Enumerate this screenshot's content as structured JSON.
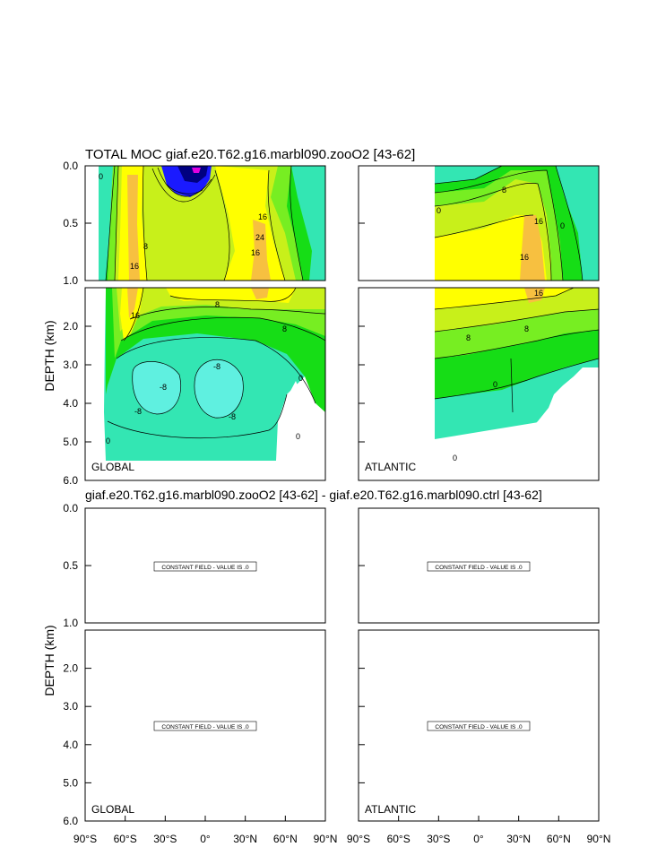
{
  "titles": {
    "top": "TOTAL MOC giaf.e20.T62.g16.marbl090.zooO2 [43-62]",
    "bottom": "giaf.e20.T62.g16.marbl090.zooO2 [43-62] - giaf.e20.T62.g16.marbl090.ctrl [43-62]"
  },
  "axes": {
    "ylabel": "DEPTH (km)",
    "upper_ticks": [
      "0.0",
      "0.5",
      "1.0"
    ],
    "lower_ticks": [
      "2.0",
      "3.0",
      "4.0",
      "5.0",
      "6.0"
    ],
    "x_ticks_left": [
      "90°S",
      "60°S",
      "30°S",
      "0°",
      "30°N",
      "60°N",
      "90°N"
    ],
    "x_ticks_right": [
      "90°S",
      "60°S",
      "30°S",
      "0°",
      "30°N",
      "60°N",
      "90°N"
    ]
  },
  "panel_labels": {
    "global": "GLOBAL",
    "atlantic": "ATLANTIC"
  },
  "constant_field_text": "CONSTANT FIELD - VALUE IS .0",
  "colors": {
    "cyan": "#33e6b3",
    "green": "#16dd16",
    "lightgreen": "#77ee22",
    "yellowgreen": "#c8f01a",
    "yellow": "#ffff00",
    "orange": "#f7c040",
    "blue": "#1a1aff",
    "darkblue": "#000080",
    "magenta": "#e000e0"
  },
  "chart_data": [
    {
      "type": "heatmap",
      "title": "TOTAL MOC giaf.e20.T62.g16.marbl090.zooO2 [43-62]",
      "panel": "GLOBAL",
      "xlabel": "",
      "ylabel": "DEPTH (km)",
      "xlim": [
        -90,
        90
      ],
      "ylim": [
        6.0,
        0.0
      ],
      "contour_labels": [
        "-8",
        "0",
        "8",
        "16",
        "24"
      ],
      "features": [
        {
          "name": "upper cell maximum",
          "lat": 40,
          "depth": 0.8,
          "value": 24
        },
        {
          "name": "southern deep cell",
          "lat": -30,
          "depth": 3.8,
          "value": -8
        },
        {
          "name": "equatorial deep cell",
          "lat": 5,
          "depth": 3.8,
          "value": -8
        },
        {
          "name": "tropical minimum",
          "lat": -10,
          "depth": 0.05,
          "value": -32
        },
        {
          "name": "southern ocean maximum",
          "lat": -58,
          "depth": 0.6,
          "value": 16
        }
      ]
    },
    {
      "type": "heatmap",
      "title": "TOTAL MOC giaf.e20.T62.g16.marbl090.zooO2 [43-62]",
      "panel": "ATLANTIC",
      "xlim": [
        -90,
        90
      ],
      "ylim": [
        6.0,
        0.0
      ],
      "contour_labels": [
        "0",
        "8",
        "16"
      ],
      "features": [
        {
          "name": "overturning maximum",
          "lat": 35,
          "depth": 0.9,
          "value": 16
        }
      ]
    },
    {
      "type": "heatmap",
      "title": "giaf.e20.T62.g16.marbl090.zooO2 [43-62] - giaf.e20.T62.g16.marbl090.ctrl [43-62]",
      "panel": "GLOBAL",
      "xlim": [
        -90,
        90
      ],
      "ylim": [
        6.0,
        0.0
      ],
      "constant_value": 0.0
    },
    {
      "type": "heatmap",
      "title": "giaf.e20.T62.g16.marbl090.zooO2 [43-62] - giaf.e20.T62.g16.marbl090.ctrl [43-62]",
      "panel": "ATLANTIC",
      "xlim": [
        -90,
        90
      ],
      "ylim": [
        6.0,
        0.0
      ],
      "constant_value": 0.0
    }
  ]
}
